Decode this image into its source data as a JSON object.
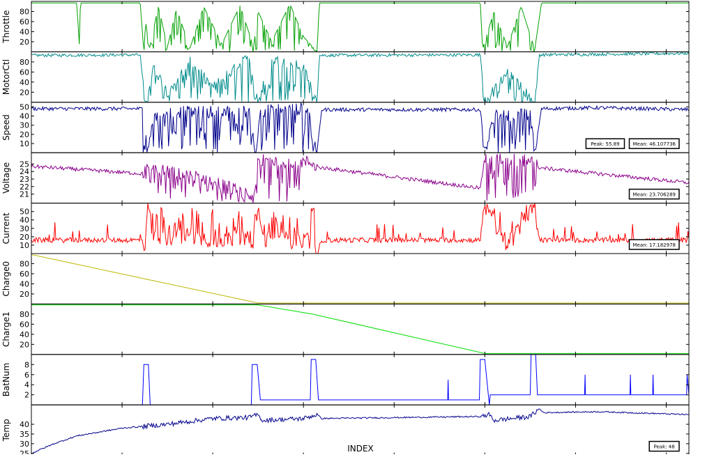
{
  "chart_data": {
    "type": "line",
    "xlabel": "INDEX",
    "xlim": [
      0,
      14500
    ],
    "xticks": [
      0,
      2000,
      4000,
      6000,
      8000,
      10000,
      12000,
      14000
    ],
    "grid": false,
    "panels": [
      {
        "ylabel": "Throttle",
        "color": "#00a000",
        "ylim": [
          0,
          100
        ],
        "yticks": [
          20,
          40,
          60,
          80
        ],
        "noise": 0,
        "spikes": "down",
        "series": [
          {
            "x": 0,
            "y": 97
          },
          {
            "x": 1000,
            "y": 97
          },
          {
            "x": 1060,
            "y": 10
          },
          {
            "x": 1080,
            "y": 97
          },
          {
            "x": 2400,
            "y": 97
          },
          {
            "x": 2480,
            "y": 0
          },
          {
            "x": 2520,
            "y": 60
          },
          {
            "x": 2600,
            "y": 5
          },
          {
            "x": 2800,
            "y": 90
          },
          {
            "x": 3000,
            "y": 10
          },
          {
            "x": 3200,
            "y": 85
          },
          {
            "x": 3500,
            "y": 8
          },
          {
            "x": 3800,
            "y": 90
          },
          {
            "x": 4200,
            "y": 15
          },
          {
            "x": 4600,
            "y": 92
          },
          {
            "x": 4900,
            "y": 10
          },
          {
            "x": 5000,
            "y": 80
          },
          {
            "x": 5300,
            "y": 20
          },
          {
            "x": 5700,
            "y": 95
          },
          {
            "x": 6000,
            "y": 30
          },
          {
            "x": 6300,
            "y": 0
          },
          {
            "x": 6350,
            "y": 97
          },
          {
            "x": 9000,
            "y": 97
          },
          {
            "x": 9900,
            "y": 97
          },
          {
            "x": 9950,
            "y": 5
          },
          {
            "x": 10200,
            "y": 80
          },
          {
            "x": 10500,
            "y": 10
          },
          {
            "x": 10800,
            "y": 90
          },
          {
            "x": 11100,
            "y": 5
          },
          {
            "x": 11250,
            "y": 97
          },
          {
            "x": 14500,
            "y": 97
          }
        ],
        "annotations": []
      },
      {
        "ylabel": "MotorCtl",
        "color": "#008b8b",
        "ylim": [
          0,
          100
        ],
        "yticks": [
          20,
          40,
          60,
          80
        ],
        "noise": 3,
        "spikes": "down",
        "series": [
          {
            "x": 0,
            "y": 93
          },
          {
            "x": 2400,
            "y": 94
          },
          {
            "x": 2500,
            "y": 0
          },
          {
            "x": 2700,
            "y": 70
          },
          {
            "x": 3000,
            "y": 20
          },
          {
            "x": 3500,
            "y": 80
          },
          {
            "x": 4000,
            "y": 30
          },
          {
            "x": 4800,
            "y": 90
          },
          {
            "x": 5000,
            "y": 0
          },
          {
            "x": 5300,
            "y": 85
          },
          {
            "x": 6000,
            "y": 70
          },
          {
            "x": 6300,
            "y": 0
          },
          {
            "x": 6350,
            "y": 93
          },
          {
            "x": 9900,
            "y": 94
          },
          {
            "x": 10000,
            "y": 0
          },
          {
            "x": 10500,
            "y": 60
          },
          {
            "x": 11100,
            "y": 0
          },
          {
            "x": 11200,
            "y": 94
          },
          {
            "x": 14500,
            "y": 97
          }
        ],
        "annotations": []
      },
      {
        "ylabel": "Speed",
        "color": "#00008b",
        "ylim": [
          0,
          55
        ],
        "yticks": [
          10,
          20,
          30,
          40,
          50
        ],
        "noise": 2,
        "spikes": "down",
        "series": [
          {
            "x": 0,
            "y": 48
          },
          {
            "x": 2480,
            "y": 48
          },
          {
            "x": 2550,
            "y": 0
          },
          {
            "x": 2700,
            "y": 46
          },
          {
            "x": 3500,
            "y": 44
          },
          {
            "x": 4800,
            "y": 45
          },
          {
            "x": 4950,
            "y": 0
          },
          {
            "x": 5050,
            "y": 46
          },
          {
            "x": 6100,
            "y": 48
          },
          {
            "x": 6300,
            "y": 0
          },
          {
            "x": 6400,
            "y": 47
          },
          {
            "x": 9900,
            "y": 47
          },
          {
            "x": 10000,
            "y": 0
          },
          {
            "x": 10200,
            "y": 40
          },
          {
            "x": 11000,
            "y": 42
          },
          {
            "x": 11100,
            "y": 0
          },
          {
            "x": 11250,
            "y": 48
          },
          {
            "x": 12500,
            "y": 49
          },
          {
            "x": 14500,
            "y": 47
          }
        ],
        "annotations": [
          "Peak: 55.89",
          "Mean: 46.107736"
        ]
      },
      {
        "ylabel": "Voltage",
        "color": "#8b008b",
        "ylim": [
          19.8,
          26.5
        ],
        "yticks": [
          21,
          22,
          23,
          24,
          25
        ],
        "noise": 0.25,
        "spikes": "down",
        "series": [
          {
            "x": 0,
            "y": 24.7
          },
          {
            "x": 2480,
            "y": 23.7
          },
          {
            "x": 2500,
            "y": 24.5
          },
          {
            "x": 4000,
            "y": 22.8
          },
          {
            "x": 4900,
            "y": 20.5
          },
          {
            "x": 5000,
            "y": 25.5
          },
          {
            "x": 6200,
            "y": 25.2
          },
          {
            "x": 6300,
            "y": 24.6
          },
          {
            "x": 9900,
            "y": 21.8
          },
          {
            "x": 10000,
            "y": 25.8
          },
          {
            "x": 11100,
            "y": 25.4
          },
          {
            "x": 11200,
            "y": 24.5
          },
          {
            "x": 14500,
            "y": 22.5
          }
        ],
        "annotations": [
          "Mean: 23.706289"
        ]
      },
      {
        "ylabel": "Current",
        "color": "#ff0000",
        "ylim": [
          0,
          60
        ],
        "yticks": [
          10,
          20,
          30,
          40,
          50
        ],
        "noise": 3,
        "spikes": "up",
        "series": [
          {
            "x": 0,
            "y": 16
          },
          {
            "x": 2480,
            "y": 16
          },
          {
            "x": 2500,
            "y": 0
          },
          {
            "x": 2550,
            "y": 55
          },
          {
            "x": 2700,
            "y": 20
          },
          {
            "x": 4900,
            "y": 16
          },
          {
            "x": 5000,
            "y": 58
          },
          {
            "x": 5100,
            "y": 16
          },
          {
            "x": 6200,
            "y": 16
          },
          {
            "x": 6300,
            "y": 0
          },
          {
            "x": 6400,
            "y": 16
          },
          {
            "x": 9900,
            "y": 16
          },
          {
            "x": 10000,
            "y": 55
          },
          {
            "x": 10500,
            "y": 10
          },
          {
            "x": 11100,
            "y": 55
          },
          {
            "x": 11200,
            "y": 16
          },
          {
            "x": 14500,
            "y": 16
          }
        ],
        "annotations": [
          "Mean: 17.182978"
        ]
      },
      {
        "ylabel": "Charge0",
        "color": "#bdb700",
        "ylim": [
          0,
          100
        ],
        "yticks": [
          20,
          40,
          60,
          80
        ],
        "noise": 0,
        "spikes": "none",
        "series": [
          {
            "x": 0,
            "y": 98
          },
          {
            "x": 2500,
            "y": 50
          },
          {
            "x": 5000,
            "y": 2
          },
          {
            "x": 14500,
            "y": 2
          }
        ],
        "annotations": []
      },
      {
        "ylabel": "Charge1",
        "color": "#00dd00",
        "ylim": [
          0,
          100
        ],
        "yticks": [
          20,
          40,
          60,
          80
        ],
        "noise": 0,
        "spikes": "none",
        "series": [
          {
            "x": 0,
            "y": 98
          },
          {
            "x": 5000,
            "y": 98
          },
          {
            "x": 6200,
            "y": 80
          },
          {
            "x": 10000,
            "y": 2
          },
          {
            "x": 14500,
            "y": 2
          }
        ],
        "annotations": []
      },
      {
        "ylabel": "BatNum",
        "color": "#0000ff",
        "ylim": [
          0,
          10
        ],
        "yticks": [
          2,
          4,
          6,
          8
        ],
        "noise": 0,
        "spikes": "none",
        "series": [
          {
            "x": 0,
            "y": 0
          },
          {
            "x": 2450,
            "y": 0
          },
          {
            "x": 2480,
            "y": 8
          },
          {
            "x": 2580,
            "y": 8
          },
          {
            "x": 2620,
            "y": 0
          },
          {
            "x": 4850,
            "y": 0
          },
          {
            "x": 4870,
            "y": 8
          },
          {
            "x": 4980,
            "y": 8
          },
          {
            "x": 5050,
            "y": 1
          },
          {
            "x": 6150,
            "y": 1
          },
          {
            "x": 6170,
            "y": 9
          },
          {
            "x": 6270,
            "y": 9
          },
          {
            "x": 6330,
            "y": 1
          },
          {
            "x": 9180,
            "y": 1
          },
          {
            "x": 9190,
            "y": 5
          },
          {
            "x": 9200,
            "y": 1
          },
          {
            "x": 9880,
            "y": 1
          },
          {
            "x": 9900,
            "y": 9
          },
          {
            "x": 10000,
            "y": 9
          },
          {
            "x": 10100,
            "y": 0
          },
          {
            "x": 10120,
            "y": 2
          },
          {
            "x": 11000,
            "y": 2
          },
          {
            "x": 11020,
            "y": 10
          },
          {
            "x": 11120,
            "y": 10
          },
          {
            "x": 11160,
            "y": 2
          },
          {
            "x": 12200,
            "y": 2
          },
          {
            "x": 12210,
            "y": 6
          },
          {
            "x": 12220,
            "y": 2
          },
          {
            "x": 13200,
            "y": 2
          },
          {
            "x": 13210,
            "y": 6
          },
          {
            "x": 13220,
            "y": 2
          },
          {
            "x": 13700,
            "y": 2
          },
          {
            "x": 13710,
            "y": 6
          },
          {
            "x": 13720,
            "y": 2
          },
          {
            "x": 14450,
            "y": 2
          },
          {
            "x": 14460,
            "y": 6
          },
          {
            "x": 14500,
            "y": 2
          }
        ],
        "annotations": []
      },
      {
        "ylabel": "Temp",
        "color": "#00008b",
        "ylim": [
          24,
          50
        ],
        "yticks": [
          25,
          30,
          35,
          40
        ],
        "noise": 0.35,
        "spikes": "none",
        "series": [
          {
            "x": 0,
            "y": 25
          },
          {
            "x": 500,
            "y": 30
          },
          {
            "x": 1000,
            "y": 34
          },
          {
            "x": 2000,
            "y": 38
          },
          {
            "x": 2500,
            "y": 39
          },
          {
            "x": 3000,
            "y": 40
          },
          {
            "x": 4000,
            "y": 43
          },
          {
            "x": 4800,
            "y": 43.5
          },
          {
            "x": 5000,
            "y": 45
          },
          {
            "x": 5100,
            "y": 42
          },
          {
            "x": 6000,
            "y": 43
          },
          {
            "x": 6300,
            "y": 45
          },
          {
            "x": 6400,
            "y": 43
          },
          {
            "x": 9900,
            "y": 44
          },
          {
            "x": 10100,
            "y": 45
          },
          {
            "x": 10200,
            "y": 42
          },
          {
            "x": 11000,
            "y": 44
          },
          {
            "x": 11200,
            "y": 48
          },
          {
            "x": 11300,
            "y": 46
          },
          {
            "x": 12500,
            "y": 46.5
          },
          {
            "x": 14500,
            "y": 45
          }
        ],
        "annotations": [
          "Peak: 48"
        ]
      }
    ]
  }
}
